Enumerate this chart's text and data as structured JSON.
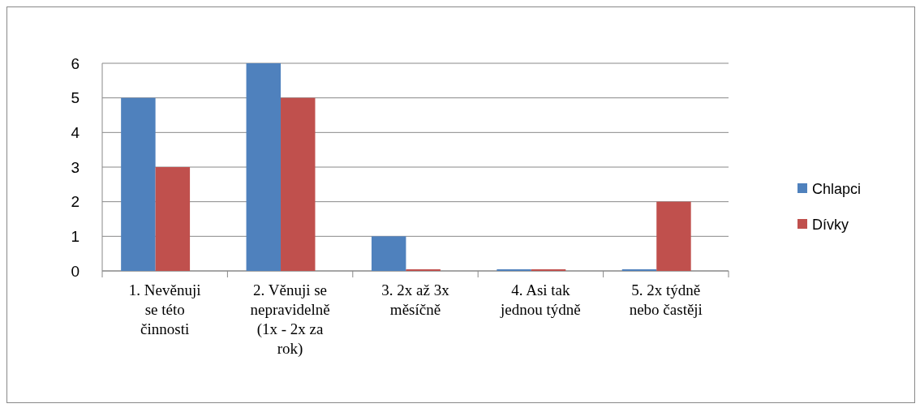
{
  "chart_data": {
    "type": "bar",
    "categories": [
      "1. Nevěnuji se této činnosti",
      "2. Věnuji se nepravidelně (1x - 2x za rok)",
      "3. 2x až 3x měsíčně",
      "4. Asi tak jednou týdně",
      "5. 2x týdně nebo častěji"
    ],
    "series": [
      {
        "name": "Chlapci",
        "color": "#4f81bd",
        "values": [
          5,
          6,
          1,
          0,
          0
        ]
      },
      {
        "name": "Dívky",
        "color": "#c0504d",
        "values": [
          3,
          5,
          0,
          0,
          2
        ]
      }
    ],
    "ylim": [
      0,
      6
    ],
    "yticks": [
      0,
      1,
      2,
      3,
      4,
      5,
      6
    ],
    "grid": "y",
    "legend": "right"
  }
}
